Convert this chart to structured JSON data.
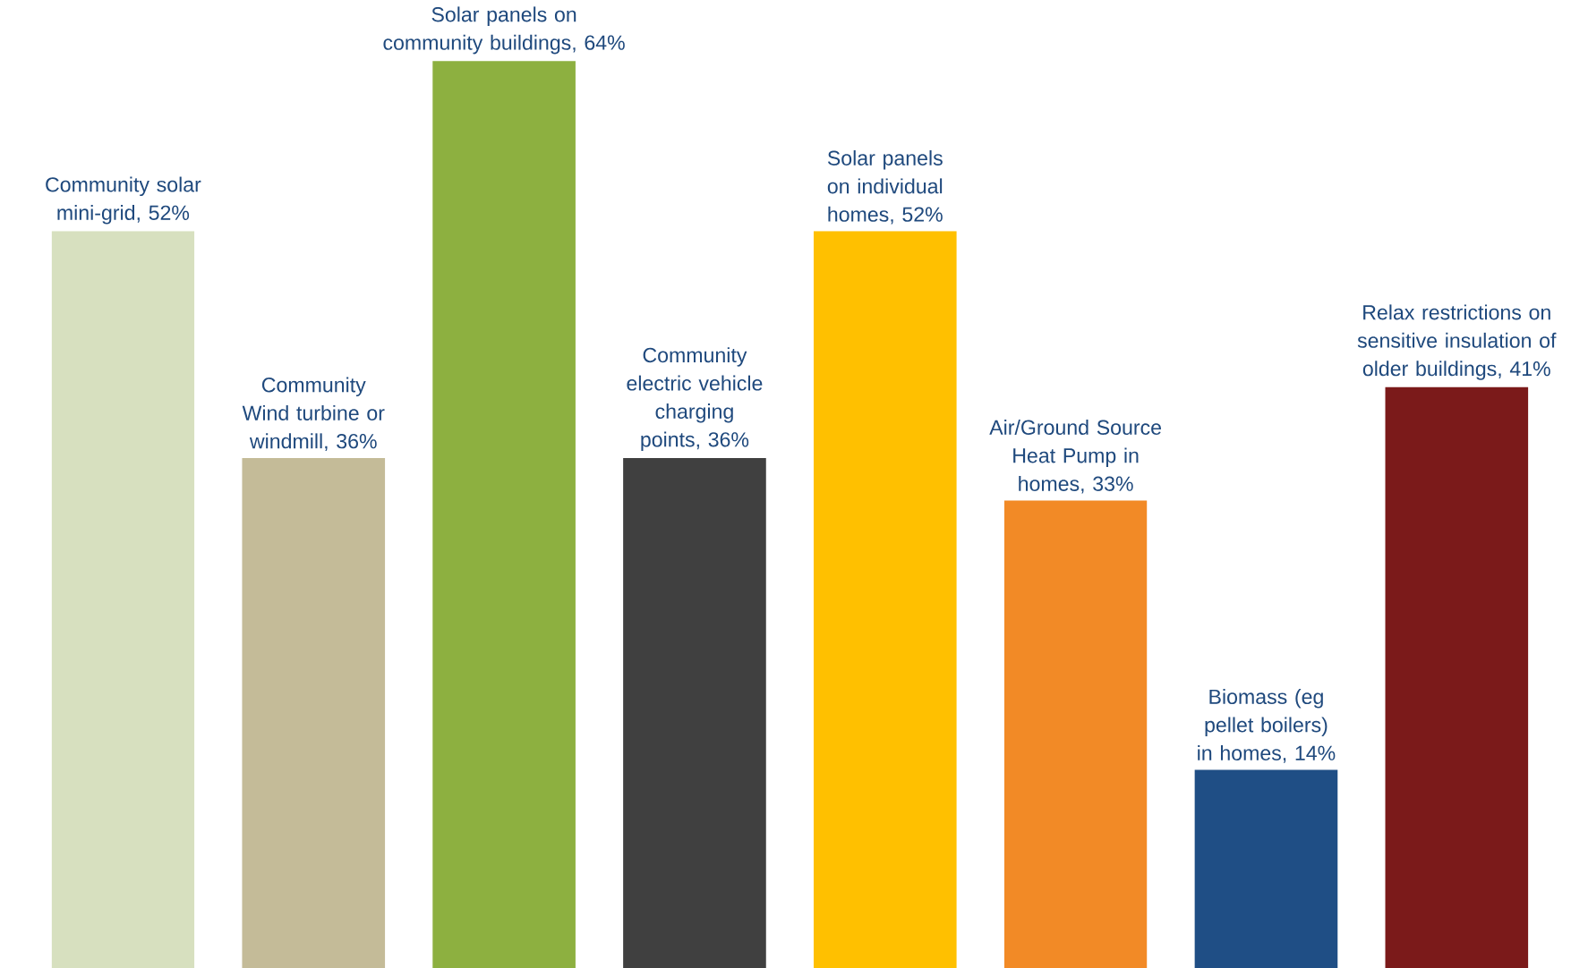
{
  "chart_data": {
    "type": "bar",
    "categories": [
      null,
      null,
      null,
      null,
      null,
      null,
      null,
      null
    ],
    "values": [
      52,
      36,
      64,
      36,
      52,
      33,
      14,
      41
    ],
    "value_labels": [
      "Community solar mini-grid, 52%",
      "Community Wind turbine or windmill, 36%",
      "Solar panels on community buildings, 64%",
      "Community electric vehicle charging points, 36%",
      "Solar panels on individual homes, 52%",
      "Air/Ground Source Heat Pump in homes, 33%",
      "Biomass (eg pellet boilers) in homes, 14%",
      "Relax restrictions on sensitive insulation of older buildings, 41%"
    ],
    "colors": [
      "#d7e0bf",
      "#c4bb98",
      "#8db040",
      "#404040",
      "#ffc000",
      "#f28a26",
      "#1f4e85",
      "#7b1a1a"
    ]
  }
}
